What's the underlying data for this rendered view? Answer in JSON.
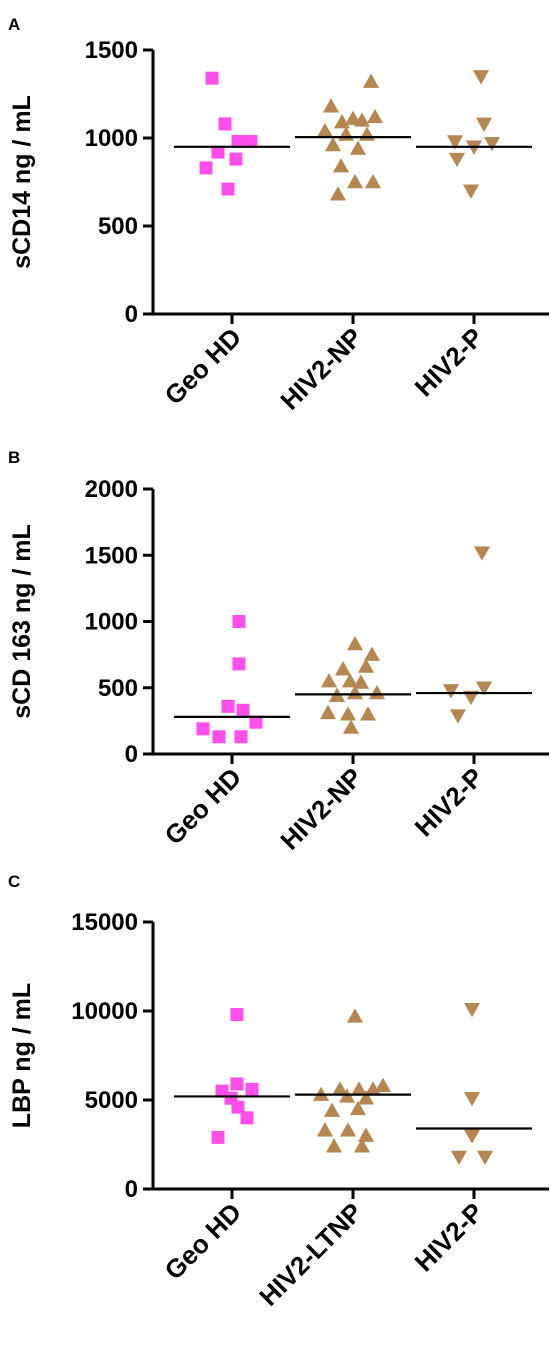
{
  "colors": {
    "magenta": "#FF4EE9",
    "brown": "#B5864F",
    "axis": "#000000"
  },
  "chart_data": [
    {
      "panel": "A",
      "type": "scatter",
      "ylabel": "sCD14 ng / mL",
      "ylim": [
        0,
        1500
      ],
      "yticks": [
        "0",
        "500",
        "1000",
        "1500"
      ],
      "categories": [
        "Geo HD",
        "HIV2-NP",
        "HIV2-P"
      ],
      "groups": [
        {
          "category": "Geo HD",
          "marker": "square",
          "color": "#FF4EE9",
          "median": 950,
          "points": [
            [
              -0.2,
              1340
            ],
            [
              -0.07,
              1080
            ],
            [
              0.06,
              980
            ],
            [
              0.19,
              980
            ],
            [
              -0.14,
              920
            ],
            [
              0.04,
              880
            ],
            [
              -0.26,
              830
            ],
            [
              -0.04,
              710
            ]
          ]
        },
        {
          "category": "HIV2-NP",
          "marker": "triangle-up",
          "color": "#B5864F",
          "median": 1005,
          "points": [
            [
              0.18,
              1320
            ],
            [
              -0.22,
              1180
            ],
            [
              0.0,
              1110
            ],
            [
              -0.11,
              1090
            ],
            [
              0.09,
              1100
            ],
            [
              0.22,
              1120
            ],
            [
              -0.28,
              1040
            ],
            [
              -0.07,
              1020
            ],
            [
              0.14,
              1020
            ],
            [
              -0.2,
              960
            ],
            [
              0.05,
              940
            ],
            [
              -0.12,
              840
            ],
            [
              0.02,
              750
            ],
            [
              0.2,
              750
            ],
            [
              -0.15,
              680
            ]
          ]
        },
        {
          "category": "HIV2-P",
          "marker": "triangle-down",
          "color": "#B5864F",
          "median": 950,
          "points": [
            [
              0.07,
              1350
            ],
            [
              0.1,
              1080
            ],
            [
              -0.19,
              980
            ],
            [
              0.0,
              950
            ],
            [
              0.18,
              970
            ],
            [
              -0.17,
              880
            ],
            [
              -0.03,
              700
            ]
          ]
        }
      ]
    },
    {
      "panel": "B",
      "type": "scatter",
      "ylabel": "sCD 163 ng / mL",
      "ylim": [
        0,
        2000
      ],
      "yticks": [
        "0",
        "500",
        "1000",
        "1500",
        "2000"
      ],
      "categories": [
        "Geo HD",
        "HIV2-NP",
        "HIV2-P"
      ],
      "groups": [
        {
          "category": "Geo HD",
          "marker": "square",
          "color": "#FF4EE9",
          "median": 280,
          "points": [
            [
              0.07,
              1000
            ],
            [
              0.07,
              680
            ],
            [
              -0.04,
              360
            ],
            [
              0.11,
              330
            ],
            [
              0.24,
              240
            ],
            [
              -0.29,
              190
            ],
            [
              -0.13,
              130
            ],
            [
              0.09,
              130
            ]
          ]
        },
        {
          "category": "HIV2-NP",
          "marker": "triangle-up",
          "color": "#B5864F",
          "median": 450,
          "points": [
            [
              0.02,
              830
            ],
            [
              0.19,
              750
            ],
            [
              -0.1,
              640
            ],
            [
              0.13,
              660
            ],
            [
              -0.24,
              550
            ],
            [
              -0.03,
              550
            ],
            [
              0.08,
              540
            ],
            [
              -0.16,
              440
            ],
            [
              0.02,
              460
            ],
            [
              0.24,
              460
            ],
            [
              -0.25,
              310
            ],
            [
              -0.05,
              300
            ],
            [
              0.15,
              300
            ],
            [
              -0.02,
              200
            ]
          ]
        },
        {
          "category": "HIV2-P",
          "marker": "triangle-down",
          "color": "#B5864F",
          "median": 460,
          "points": [
            [
              0.08,
              1520
            ],
            [
              -0.23,
              480
            ],
            [
              0.1,
              500
            ],
            [
              -0.03,
              430
            ],
            [
              -0.16,
              290
            ]
          ]
        }
      ]
    },
    {
      "panel": "C",
      "type": "scatter",
      "ylabel": "LBP ng / mL",
      "ylim": [
        0,
        15000
      ],
      "yticks": [
        "0",
        "5000",
        "10000",
        "15000"
      ],
      "categories": [
        "Geo HD",
        "HIV2-LTNP",
        "HIV2-P"
      ],
      "groups": [
        {
          "category": "Geo HD",
          "marker": "square",
          "color": "#FF4EE9",
          "median": 5200,
          "points": [
            [
              0.05,
              9800
            ],
            [
              0.05,
              5900
            ],
            [
              0.2,
              5600
            ],
            [
              -0.1,
              5500
            ],
            [
              -0.01,
              5100
            ],
            [
              0.06,
              4600
            ],
            [
              0.15,
              4000
            ],
            [
              -0.14,
              2900
            ]
          ]
        },
        {
          "category": "HIV2-LTNP",
          "marker": "triangle-up",
          "color": "#B5864F",
          "median": 5300,
          "points": [
            [
              0.02,
              9700
            ],
            [
              0.3,
              5800
            ],
            [
              -0.13,
              5600
            ],
            [
              0.06,
              5600
            ],
            [
              0.2,
              5600
            ],
            [
              -0.32,
              5300
            ],
            [
              -0.06,
              5200
            ],
            [
              0.13,
              5100
            ],
            [
              -0.21,
              4400
            ],
            [
              0.05,
              4500
            ],
            [
              -0.28,
              3300
            ],
            [
              -0.05,
              3300
            ],
            [
              0.13,
              3000
            ],
            [
              -0.19,
              2400
            ],
            [
              0.09,
              2400
            ]
          ]
        },
        {
          "category": "HIV2-P",
          "marker": "triangle-down",
          "color": "#B5864F",
          "median": 3400,
          "points": [
            [
              -0.02,
              10100
            ],
            [
              -0.02,
              5100
            ],
            [
              -0.02,
              3000
            ],
            [
              -0.15,
              1800
            ],
            [
              0.11,
              1800
            ]
          ]
        }
      ]
    }
  ]
}
